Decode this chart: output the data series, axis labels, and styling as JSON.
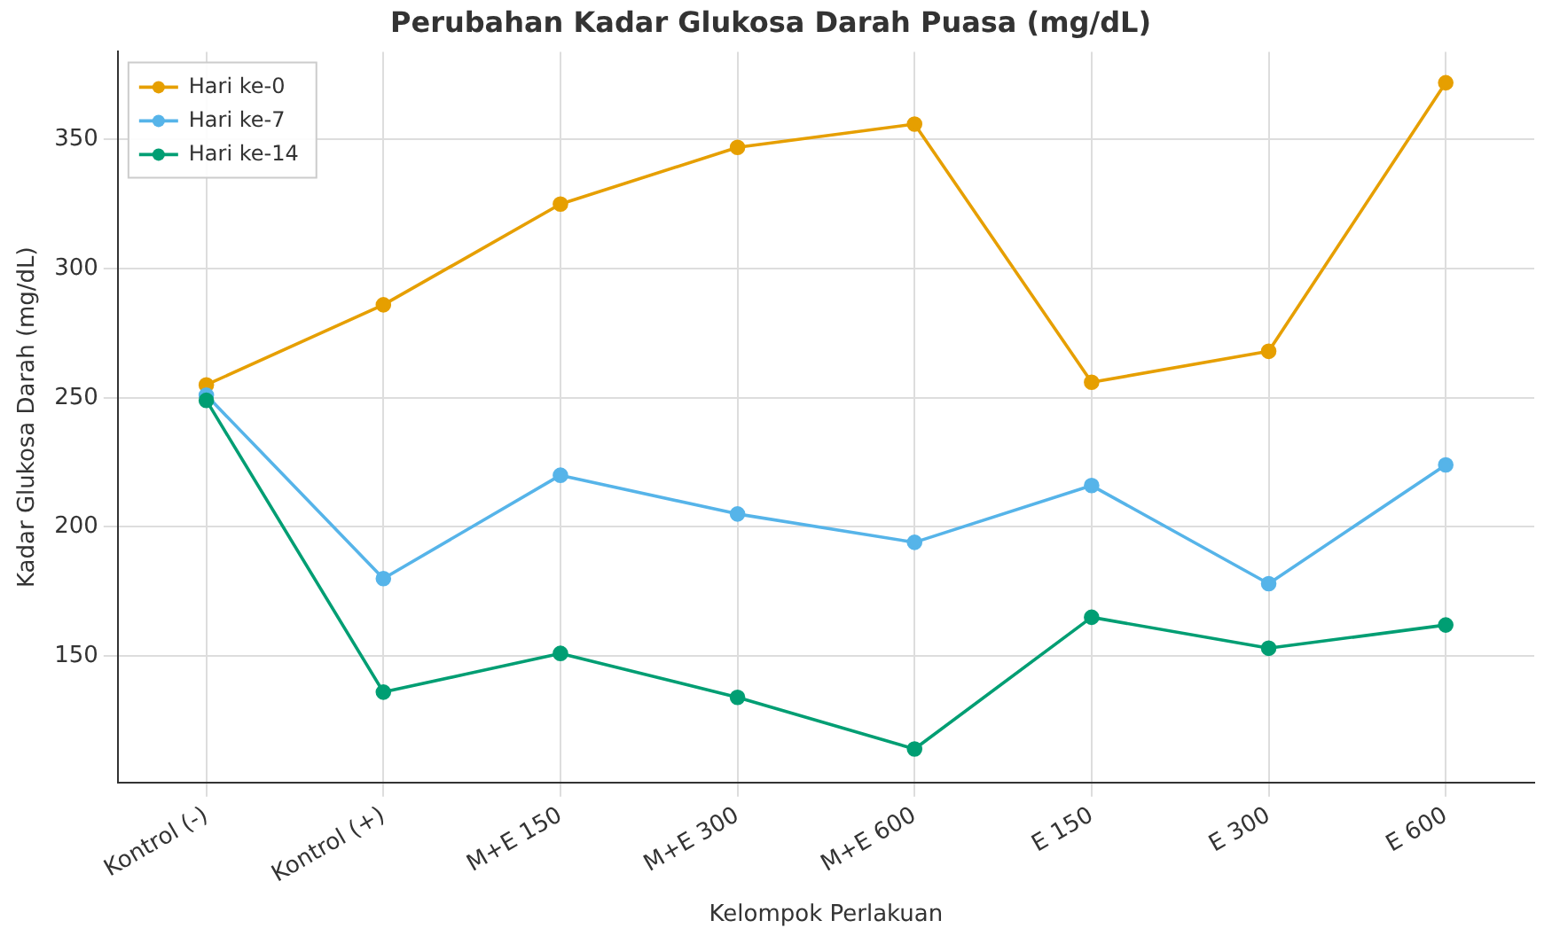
{
  "chart_data": {
    "type": "line",
    "title": "Perubahan Kadar Glukosa Darah Puasa (mg/dL)",
    "xlabel": "Kelompok Perlakuan",
    "ylabel": "Kadar Glukosa Darah (mg/dL)",
    "categories": [
      "Kontrol (-)",
      "Kontrol (+)",
      "M+E 150",
      "M+E 300",
      "M+E 600",
      "E 150",
      "E 300",
      "E 600"
    ],
    "series": [
      {
        "name": "Hari ke-0",
        "color": "#e69f00",
        "values": [
          255,
          286,
          325,
          347,
          356,
          256,
          268,
          372
        ]
      },
      {
        "name": "Hari ke-7",
        "color": "#56b4e9",
        "values": [
          251,
          180,
          220,
          205,
          194,
          216,
          178,
          224
        ]
      },
      {
        "name": "Hari ke-14",
        "color": "#009e73",
        "values": [
          249,
          136,
          151,
          134,
          114,
          165,
          153,
          162
        ]
      }
    ],
    "ylim": [
      101,
      384
    ],
    "yticks": [
      150,
      200,
      250,
      300,
      350
    ],
    "grid": true,
    "legend": "top left",
    "marker": "circle",
    "line_style": "solid"
  }
}
